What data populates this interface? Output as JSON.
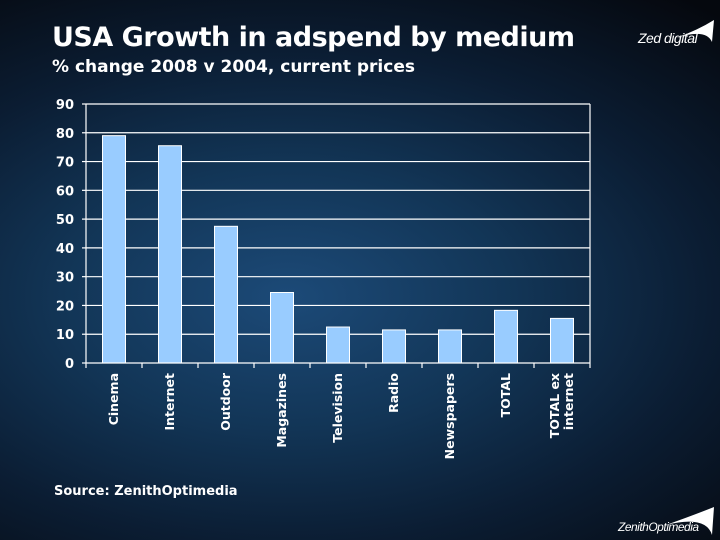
{
  "header": {
    "title": "USA Growth in adspend by medium",
    "subtitle": "% change 2008 v 2004, current prices"
  },
  "logos": {
    "top": "Zed digital",
    "bottom": "ZenithOptimedia"
  },
  "footer": {
    "source": "Source: ZenithOptimedia"
  },
  "colors": {
    "bar_fill": "#99ccff",
    "bar_stroke": "#ffffff",
    "gridline": "#ffffff",
    "text": "#ffffff"
  },
  "chart_data": {
    "type": "bar",
    "title": "USA Growth in adspend by medium",
    "subtitle": "% change 2008 v 2004, current prices",
    "xlabel": "",
    "ylabel": "",
    "categories": [
      "Cinema",
      "Internet",
      "Outdoor",
      "Magazines",
      "Television",
      "Radio",
      "Newspapers",
      "TOTAL",
      "TOTAL ex internet"
    ],
    "category_lines": [
      [
        "Cinema"
      ],
      [
        "Internet"
      ],
      [
        "Outdoor"
      ],
      [
        "Magazines"
      ],
      [
        "Television"
      ],
      [
        "Radio"
      ],
      [
        "Newspapers"
      ],
      [
        "TOTAL"
      ],
      [
        "TOTAL ex",
        "internet"
      ]
    ],
    "values": [
      79,
      75.5,
      47.5,
      24.5,
      12.5,
      11.5,
      11.5,
      18.3,
      15.5
    ],
    "ylim": [
      0,
      90
    ],
    "yticks": [
      0,
      10,
      20,
      30,
      40,
      50,
      60,
      70,
      80,
      90
    ],
    "grid": true,
    "legend": "none",
    "source": "Source: ZenithOptimedia"
  }
}
